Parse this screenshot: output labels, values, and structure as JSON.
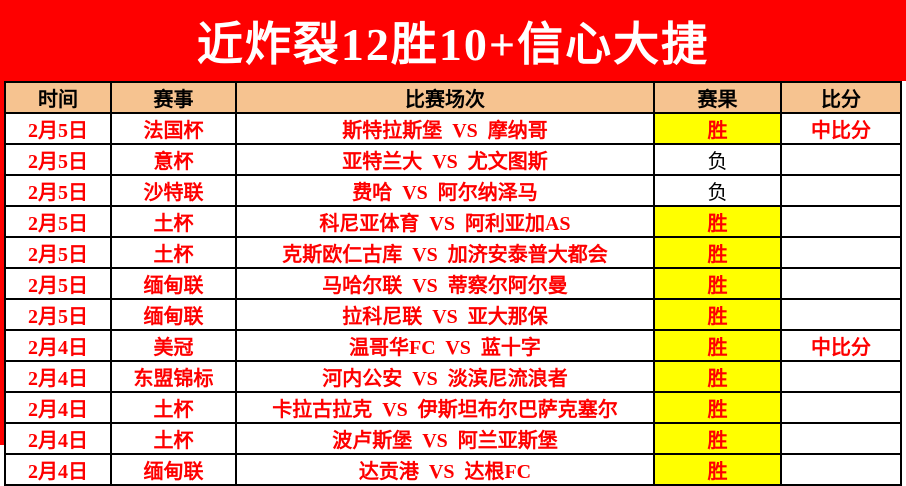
{
  "banner": {
    "title": "近炸裂12胜10+信心大捷",
    "bg_color": "#fe0000",
    "text_color": "#ffffff"
  },
  "colors": {
    "header_bg": "#f6c390",
    "win_bg": "#ffff00",
    "red_text": "#fe0000",
    "loss_text": "#000000"
  },
  "table": {
    "columns": [
      {
        "key": "time",
        "label": "时间"
      },
      {
        "key": "league",
        "label": "赛事"
      },
      {
        "key": "match",
        "label": "比赛场次"
      },
      {
        "key": "result",
        "label": "赛果"
      },
      {
        "key": "score",
        "label": "比分"
      }
    ],
    "rows": [
      {
        "time": "2月5日",
        "league": "法国杯",
        "match": "斯特拉斯堡 VS 摩纳哥",
        "result": "胜",
        "score": "中比分",
        "win": true
      },
      {
        "time": "2月5日",
        "league": "意杯",
        "match": "亚特兰大 VS 尤文图斯",
        "result": "负",
        "score": "",
        "win": false
      },
      {
        "time": "2月5日",
        "league": "沙特联",
        "match": "费哈 VS 阿尔纳泽马",
        "result": "负",
        "score": "",
        "win": false
      },
      {
        "time": "2月5日",
        "league": "土杯",
        "match": "科尼亚体育 VS 阿利亚加AS",
        "result": "胜",
        "score": "",
        "win": true
      },
      {
        "time": "2月5日",
        "league": "土杯",
        "match": "克斯欧仁古库 VS 加济安泰普大都会",
        "result": "胜",
        "score": "",
        "win": true
      },
      {
        "time": "2月5日",
        "league": "缅甸联",
        "match": "马哈尔联 VS 蒂察尔阿尔曼",
        "result": "胜",
        "score": "",
        "win": true
      },
      {
        "time": "2月5日",
        "league": "缅甸联",
        "match": "拉科尼联 VS 亚大那保",
        "result": "胜",
        "score": "",
        "win": true
      },
      {
        "time": "2月4日",
        "league": "美冠",
        "match": "温哥华FC VS 蓝十字",
        "result": "胜",
        "score": "中比分",
        "win": true
      },
      {
        "time": "2月4日",
        "league": "东盟锦标",
        "match": "河内公安 VS 淡滨尼流浪者",
        "result": "胜",
        "score": "",
        "win": true
      },
      {
        "time": "2月4日",
        "league": "土杯",
        "match": "卡拉古拉克 VS 伊斯坦布尔巴萨克塞尔",
        "result": "胜",
        "score": "",
        "win": true
      },
      {
        "time": "2月4日",
        "league": "土杯",
        "match": "波卢斯堡 VS 阿兰亚斯堡",
        "result": "胜",
        "score": "",
        "win": true
      },
      {
        "time": "2月4日",
        "league": "缅甸联",
        "match": "达贡港 VS 达根FC",
        "result": "胜",
        "score": "",
        "win": true
      }
    ]
  }
}
